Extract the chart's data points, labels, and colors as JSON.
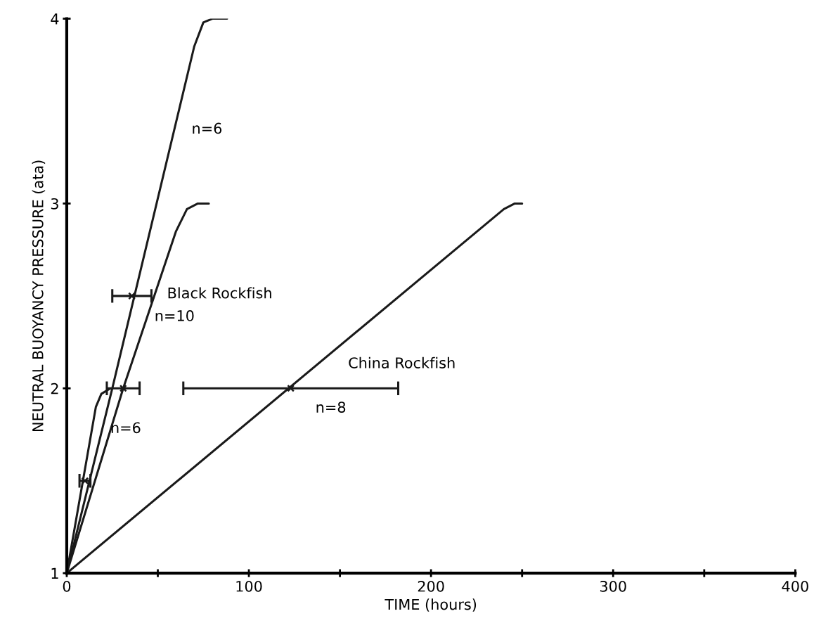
{
  "chart_data": {
    "type": "line",
    "xlabel": "TIME (hours)",
    "ylabel": "NEUTRAL BUOYANCY PRESSURE (ata)",
    "xlim": [
      0,
      400
    ],
    "ylim": [
      1,
      4
    ],
    "xticks": [
      0,
      {
        "value": 50,
        "label": null
      },
      100,
      {
        "value": 150,
        "label": null
      },
      200,
      {
        "value": 250,
        "label": null
      },
      300,
      {
        "value": 350,
        "label": null
      },
      400
    ],
    "yticks": [
      1,
      2,
      3,
      4
    ],
    "grid": false,
    "legend": false,
    "marker": "none",
    "line_style": "solid",
    "series": [
      {
        "color": "#1a1a1a",
        "x": [
          0,
          25,
          70,
          75,
          80,
          88
        ],
        "values": [
          1,
          2,
          3.85,
          3.98,
          4.0,
          4.0
        ]
      },
      {
        "color": "#1a1a1a",
        "x": [
          0,
          31,
          60,
          66,
          72,
          78
        ],
        "values": [
          1,
          2,
          2.85,
          2.97,
          3.0,
          3.0
        ]
      },
      {
        "color": "#1a1a1a",
        "x": [
          0,
          16,
          19,
          24
        ],
        "values": [
          1,
          1.9,
          1.97,
          2.0
        ]
      },
      {
        "color": "#1a1a1a",
        "x": [
          0,
          240,
          246,
          250
        ],
        "values": [
          1,
          2.97,
          3.0,
          3.0
        ]
      },
      {
        "type": "scatter",
        "marker": "cross",
        "color": "#1a1a1a",
        "x": [
          35.75,
          31,
          10,
          123
        ],
        "values": [
          2.5,
          2,
          1.5,
          2
        ],
        "xerrors": [
          [
            25,
            46.5
          ],
          [
            22,
            40
          ],
          [
            7,
            13
          ],
          [
            64,
            182
          ]
        ]
      }
    ],
    "annotations": [
      "n=6",
      "Black Rockfish",
      "n=10",
      "n=6",
      "China Rockfish",
      "n=8"
    ]
  }
}
